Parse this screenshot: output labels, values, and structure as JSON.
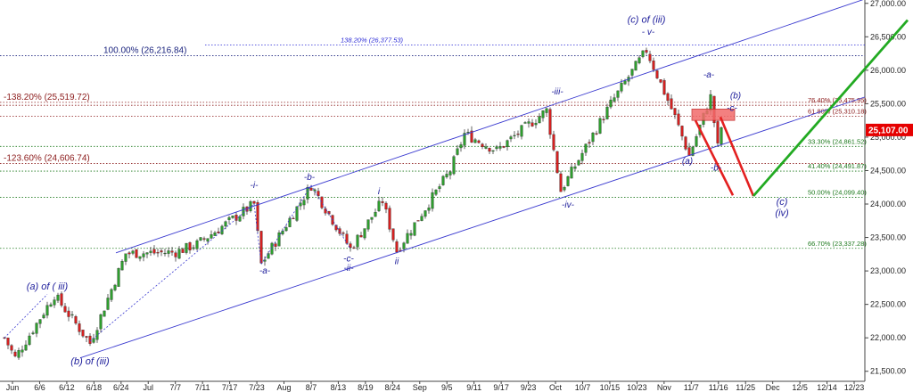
{
  "chart_data": {
    "type": "candlestick",
    "y_ticks": [
      "21,500.00",
      "22,000.00",
      "22,500.00",
      "23,000.00",
      "23,500.00",
      "24,000.00",
      "24,500.00",
      "25,000.00",
      "25,500.00",
      "26,000.00",
      "26,500.00",
      "27,000.00"
    ],
    "x_ticks": [
      "Jun",
      "6/6",
      "6/12",
      "6/18",
      "6/24",
      "Jul",
      "7/7",
      "7/11",
      "7/17",
      "7/23",
      "Aug",
      "8/7",
      "8/13",
      "8/19",
      "8/24",
      "Sep",
      "9/5",
      "9/11",
      "9/17",
      "9/23",
      "Oct",
      "10/7",
      "10/15",
      "10/23",
      "Nov",
      "11/7",
      "11/16",
      "11/25",
      "Dec",
      "12/5",
      "12/14",
      "12/23"
    ],
    "ylim": [
      21350,
      27050
    ],
    "last_price": {
      "label": "25,107.00",
      "value": 25107
    },
    "fib_left": [
      {
        "label": "100.00% (26,216.84)",
        "value": 26216.84,
        "color": "#1a237e"
      },
      {
        "label": "-138.20% (25,519.72)",
        "value": 25519.72,
        "color": "#8b1a1a"
      },
      {
        "label": "-123.60% (24,606.74)",
        "value": 24606.74,
        "color": "#8b1a1a"
      }
    ],
    "fib_right": [
      {
        "label": "138.20% (26,377.53)",
        "value": 26377.53,
        "color": "#2a2ad6",
        "at": "top"
      },
      {
        "label": "76.40% (25,475.95)",
        "value": 25475.95,
        "color": "#8b1a1a"
      },
      {
        "label": "61.80% (25,310.18)",
        "value": 25310.18,
        "color": "#8b1a1a"
      },
      {
        "label": "33.30% (24,861.52)",
        "value": 24861.52,
        "color": "#1e7a1e"
      },
      {
        "label": "41.40% (24,491.87)",
        "value": 24491.87,
        "color": "#1e7a1e"
      },
      {
        "label": "50.00% (24,099.40)",
        "value": 24099.4,
        "color": "#1e7a1e"
      },
      {
        "label": "66.70% (23,337.28)",
        "value": 23337.28,
        "color": "#1e7a1e"
      }
    ],
    "wave_labels": [
      {
        "text": "(a) of ( iii)",
        "x": 12,
        "y": 22720,
        "size": "big"
      },
      {
        "text": "(b) of (iii)",
        "x": 24,
        "y": 21600,
        "size": "big"
      },
      {
        "text": "-i-",
        "x": 70,
        "y": 24240
      },
      {
        "text": "-a-",
        "x": 73,
        "y": 22960
      },
      {
        "text": "-b-",
        "x": 85.5,
        "y": 24360
      },
      {
        "text": "-c-",
        "x": 96.5,
        "y": 23140
      },
      {
        "text": "-ii-",
        "x": 96.5,
        "y": 23000
      },
      {
        "text": "i",
        "x": 105,
        "y": 24150
      },
      {
        "text": "ii",
        "x": 110,
        "y": 23100
      },
      {
        "text": "-iii-",
        "x": 155,
        "y": 25640
      },
      {
        "text": "-iv-",
        "x": 158,
        "y": 23950
      },
      {
        "text": "(c) of (iii)",
        "x": 180,
        "y": 26710,
        "size": "big"
      },
      {
        "text": "- v-",
        "x": 180.5,
        "y": 26530
      },
      {
        "text": "-a-",
        "x": 197.5,
        "y": 25890
      },
      {
        "text": "(b)",
        "x": 205,
        "y": 25580
      },
      {
        "text": "-c-",
        "x": 204,
        "y": 25390
      },
      {
        "text": "(a)",
        "x": 191.5,
        "y": 24600
      },
      {
        "text": "-b-",
        "x": 199.5,
        "y": 24500
      },
      {
        "text": "(c)",
        "x": 218,
        "y": 23990,
        "size": "big"
      },
      {
        "text": "(iv)",
        "x": 218,
        "y": 23820,
        "size": "big"
      }
    ]
  }
}
